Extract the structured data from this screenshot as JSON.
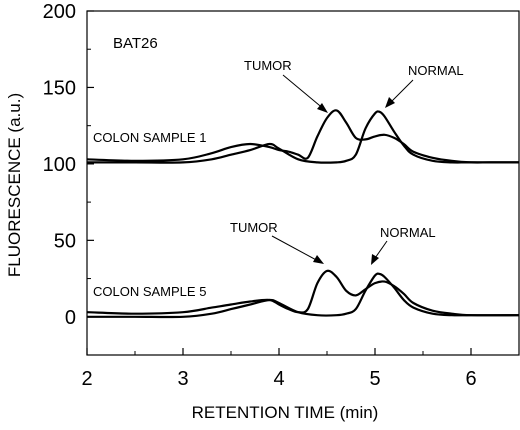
{
  "chart_data": {
    "type": "line",
    "title": "",
    "xlabel": "RETENTION TIME (min)",
    "ylabel": "FLUORESCENCE (a.u.)",
    "xlim": [
      2,
      6.5
    ],
    "ylim": [
      -25,
      200
    ],
    "xticks": [
      2,
      3,
      4,
      5,
      6
    ],
    "yticks": [
      0,
      50,
      100,
      150,
      200
    ],
    "grid": false,
    "annotations": {
      "marker_label": "BAT26",
      "sample1_label": "COLON SAMPLE 1",
      "sample5_label": "COLON SAMPLE 5",
      "tumor_label_1": "TUMOR",
      "normal_label_1": "NORMAL",
      "tumor_label_2": "TUMOR",
      "normal_label_2": "NORMAL"
    },
    "series": [
      {
        "sample": "COLON SAMPLE 1",
        "trace": "TUMOR",
        "x": [
          2.0,
          2.5,
          3.0,
          3.3,
          3.5,
          3.7,
          3.9,
          4.0,
          4.1,
          4.2,
          4.3,
          4.4,
          4.5,
          4.6,
          4.7,
          4.8,
          4.9,
          5.0,
          5.1,
          5.2,
          5.3,
          5.4,
          5.6,
          5.8,
          6.0,
          6.2,
          6.5
        ],
        "y": [
          103,
          102,
          103,
          107,
          111,
          113,
          111,
          109,
          108,
          106,
          104,
          118,
          130,
          135,
          127,
          117,
          116,
          118,
          119,
          117,
          113,
          108,
          104,
          102,
          101,
          101,
          101
        ]
      },
      {
        "sample": "COLON SAMPLE 1",
        "trace": "NORMAL",
        "x": [
          2.0,
          2.5,
          3.0,
          3.3,
          3.5,
          3.7,
          3.9,
          4.0,
          4.2,
          4.4,
          4.6,
          4.7,
          4.8,
          4.9,
          5.0,
          5.05,
          5.1,
          5.2,
          5.3,
          5.4,
          5.6,
          5.8,
          6.0,
          6.5
        ],
        "y": [
          101,
          101,
          101,
          103,
          106,
          109,
          113,
          110,
          103,
          101,
          101,
          102,
          106,
          123,
          133,
          134,
          131,
          121,
          112,
          106,
          102,
          101,
          101,
          101
        ]
      },
      {
        "sample": "COLON SAMPLE 5",
        "trace": "TUMOR",
        "x": [
          2.0,
          2.5,
          3.0,
          3.3,
          3.5,
          3.7,
          3.9,
          4.0,
          4.1,
          4.2,
          4.3,
          4.4,
          4.5,
          4.6,
          4.7,
          4.8,
          4.9,
          5.0,
          5.1,
          5.2,
          5.3,
          5.4,
          5.6,
          5.8,
          6.0,
          6.5
        ],
        "y": [
          3,
          2,
          3,
          6,
          8,
          10,
          11,
          8,
          5,
          3,
          5,
          22,
          30,
          26,
          17,
          14,
          18,
          22,
          23,
          20,
          15,
          9,
          4,
          2,
          1,
          1
        ]
      },
      {
        "sample": "COLON SAMPLE 5",
        "trace": "NORMAL",
        "x": [
          2.0,
          2.5,
          3.0,
          3.3,
          3.5,
          3.7,
          3.9,
          4.0,
          4.2,
          4.4,
          4.6,
          4.7,
          4.8,
          4.9,
          5.0,
          5.05,
          5.1,
          5.2,
          5.3,
          5.4,
          5.6,
          5.8,
          6.0,
          6.5
        ],
        "y": [
          0,
          0,
          0,
          2,
          5,
          8,
          11,
          9,
          3,
          1,
          1,
          2,
          5,
          17,
          27,
          28,
          26,
          19,
          11,
          6,
          2,
          1,
          1,
          1
        ]
      }
    ]
  }
}
